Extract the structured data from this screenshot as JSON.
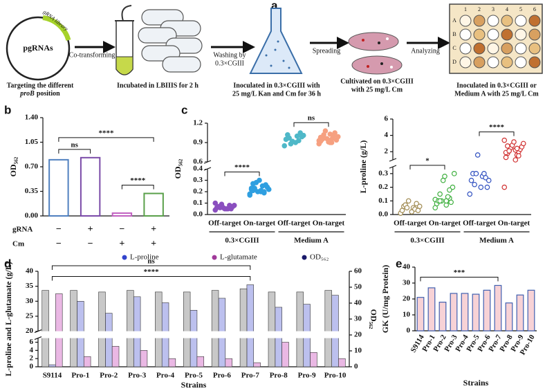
{
  "panel_labels": [
    "a",
    "b",
    "c",
    "d",
    "e"
  ],
  "workflow": {
    "plasmid": "pgRNAs",
    "library": "gRNA library",
    "caption_1": [
      "Targeting the different",
      "proB",
      "position"
    ],
    "arrow_1": "Co-transforming",
    "caption_2": "Incubated in LBIIIS for 2 h",
    "arrow_2": [
      "Washing by",
      "0.3×CGIII"
    ],
    "caption_3": [
      "Inoculated in 0.3×CGIII with",
      "25 mg/L Kan and Cm for 36 h"
    ],
    "arrow_3": "Spreading",
    "caption_4": [
      "Cultivated on 0.3×CGIII",
      "with 25 mg/L Cm"
    ],
    "arrow_4": "Analyzing",
    "caption_5": [
      "Inoculated in 0.3×CGIII or",
      "Medium A with 25 mg/L Cm"
    ],
    "plate_columns": [
      "1",
      "2",
      "3",
      "4",
      "5",
      "6"
    ],
    "plate_rows": [
      "A",
      "B",
      "C",
      "D"
    ]
  },
  "chart_data": [
    {
      "type": "bar",
      "ylabel": "OD₅₆₂",
      "values": [
        0.8,
        0.83,
        0.04,
        0.32
      ],
      "colors": [
        "#4f7fbf",
        "#7a4aa8",
        "#c060c0",
        "#5aa04a"
      ],
      "ylim": [
        0,
        1.4
      ],
      "yticks": [
        {
          "value": 0,
          "label": "0.00"
        },
        0.35,
        {
          "value": 0.7,
          "label": "0.70"
        },
        1.05,
        {
          "value": 1.4,
          "label": "1.40"
        }
      ],
      "condition_rows": [
        {
          "label": "gRNA",
          "signs": [
            "−",
            "+",
            "−",
            "+"
          ]
        },
        {
          "label": "Cm",
          "signs": [
            "−",
            "−",
            "+",
            "+"
          ]
        }
      ],
      "significance": [
        {
          "label": "ns",
          "pair": [
            0,
            1
          ]
        },
        {
          "label": "****",
          "pair": [
            2,
            3
          ]
        },
        {
          "label": "****",
          "pair": [
            0,
            3
          ]
        }
      ]
    },
    {
      "type": "strip",
      "ylabel": "OD₅₆₂",
      "marker": "filled",
      "categories": [
        "Off-target",
        "On-target",
        "Off-target",
        "On-target"
      ],
      "groups": [
        {
          "label": "0.3×CGIII",
          "span": [
            0,
            1
          ]
        },
        {
          "label": "Medium A",
          "span": [
            2,
            3
          ]
        }
      ],
      "colors": [
        "#8a4fbf",
        "#2f9fe0",
        "#4fb8c8",
        "#f6a080"
      ],
      "points": [
        [
          0.04,
          0.05,
          0.06,
          0.05,
          0.07,
          0.08,
          0.06,
          0.05,
          0.09,
          0.07,
          0.06,
          0.08,
          0.05,
          0.1
        ],
        [
          0.18,
          0.2,
          0.22,
          0.25,
          0.21,
          0.19,
          0.23,
          0.26,
          0.28,
          0.24,
          0.2,
          0.22,
          0.3,
          0.17,
          0.21,
          0.23,
          0.25,
          0.27,
          0.2,
          0.22
        ],
        [
          0.85,
          0.9,
          0.95,
          1.0,
          1.02,
          0.93,
          0.97,
          1.05,
          0.88,
          0.99,
          0.92,
          1.01
        ],
        [
          0.88,
          0.9,
          0.92,
          0.95,
          0.97,
          1.0,
          1.02,
          1.05,
          1.08,
          0.94,
          0.96,
          0.99,
          0.91,
          0.93,
          1.03,
          0.98,
          0.9,
          0.95,
          1.0,
          0.97
        ]
      ],
      "ylim": [
        0,
        1.2
      ],
      "ybreak": [
        0.4,
        0.6
      ],
      "yticks": [
        {
          "value": 0,
          "label": "0.0"
        },
        0.1,
        0.2,
        0.3,
        0.4,
        0.6,
        0.9,
        1.2
      ],
      "significance": [
        {
          "label": "****",
          "pair": [
            0,
            1
          ]
        },
        {
          "label": "ns",
          "pair": [
            2,
            3
          ]
        }
      ]
    },
    {
      "type": "strip",
      "ylabel": "L-proline (g/L)",
      "marker": "open",
      "categories": [
        "Off-target",
        "On-target",
        "Off-target",
        "On-target"
      ],
      "groups": [
        {
          "label": "0.3×CGIII",
          "span": [
            0,
            1
          ]
        },
        {
          "label": "Medium A",
          "span": [
            2,
            3
          ]
        }
      ],
      "colors": [
        "#a08a50",
        "#40b040",
        "#3050c0",
        "#d03030"
      ],
      "points": [
        [
          0.01,
          0.02,
          0.03,
          0.05,
          0.06,
          0.04,
          0.07,
          0.08,
          0.05,
          0.03,
          0.1,
          0.06
        ],
        [
          0.05,
          0.07,
          0.08,
          0.1,
          0.1,
          0.12,
          0.15,
          0.09,
          0.1,
          0.2,
          0.25,
          0.3,
          0.28,
          0.11,
          0.1,
          0.08,
          0.13,
          0.1,
          0.18,
          0.1
        ],
        [
          0.15,
          0.2,
          0.25,
          0.28,
          0.3,
          0.3,
          0.22,
          0.27,
          0.3,
          0.2,
          1.6,
          0.25
        ],
        [
          0.2,
          1.0,
          1.3,
          1.6,
          1.8,
          2.0,
          2.1,
          2.3,
          2.5,
          2.6,
          2.8,
          3.0,
          3.2,
          3.4,
          2.2,
          1.9,
          2.4,
          2.7,
          1.5,
          2.1
        ]
      ],
      "ylim": [
        0,
        6
      ],
      "ybreak": [
        0.35,
        1
      ],
      "yticks": [
        {
          "value": 0,
          "label": "0.0"
        },
        0.1,
        0.2,
        0.3,
        2,
        4,
        6
      ],
      "significance": [
        {
          "label": "*",
          "pair": [
            0,
            1
          ]
        },
        {
          "label": "****",
          "pair": [
            2,
            3
          ]
        }
      ]
    },
    {
      "type": "grouped_bar",
      "xlabel": "Strains",
      "ylabel": "L-proline and L-glutamate (g/L)",
      "y2label": "OD₅₆₂",
      "legend": "top",
      "categories": [
        "S9114",
        "Pro-1",
        "Pro-2",
        "Pro-3",
        "Pro-4",
        "Pro-5",
        "Pro-6",
        "Pro-7",
        "Pro-8",
        "Pro-9",
        "Pro-10"
      ],
      "series": [
        {
          "name": "L-proline",
          "color": "#bcc0ee",
          "marker_color": "#3344cc",
          "values": [
            0.5,
            30,
            26,
            31.5,
            29.5,
            27,
            31,
            35.5,
            28,
            29,
            32
          ]
        },
        {
          "name": "L-glutamate",
          "color": "#eab8e4",
          "marker_color": "#a03a9a",
          "values": [
            32.5,
            2.5,
            5,
            4,
            2,
            2.5,
            2,
            1,
            6,
            3.5,
            2
          ]
        },
        {
          "name": "OD₅₆₂",
          "color": "#c8c8c8",
          "marker_color": "#1a1a6a",
          "axis": "y2",
          "values": [
            48,
            48,
            47,
            48,
            47,
            47,
            48,
            49,
            47,
            47,
            48
          ]
        }
      ],
      "ylim": [
        0,
        40
      ],
      "ybreak": [
        7,
        20
      ],
      "yticks": [
        0,
        2,
        4,
        6,
        20,
        25,
        30,
        35,
        40
      ],
      "y2lim": [
        0,
        60
      ],
      "y2ticks": [
        0,
        10,
        20,
        30,
        40,
        50,
        60
      ],
      "significance": [
        {
          "label": "****",
          "pair": [
            0,
            7
          ]
        },
        {
          "label": "ns",
          "pair": [
            0,
            7
          ]
        }
      ]
    },
    {
      "type": "bar",
      "xlabel": "Strains",
      "ylabel": "GK (U/mg Protein)",
      "categories": [
        "S9114",
        "Pro-1",
        "Pro-2",
        "Pro-3",
        "Pro-4",
        "Pro-5",
        "Pro-6",
        "Pro-7",
        "Pro-8",
        "Pro-9",
        "Pro-10"
      ],
      "values": [
        21,
        27,
        18,
        23.5,
        23.5,
        23,
        25.5,
        28.5,
        17.5,
        22.5,
        25.5
      ],
      "color": "#f7d2d6",
      "edge_color": "#4060b0",
      "ylim": [
        0,
        40
      ],
      "yticks": [
        0,
        10,
        20,
        30,
        40
      ],
      "significance": [
        {
          "label": "***",
          "pair": [
            0,
            7
          ]
        }
      ]
    }
  ]
}
